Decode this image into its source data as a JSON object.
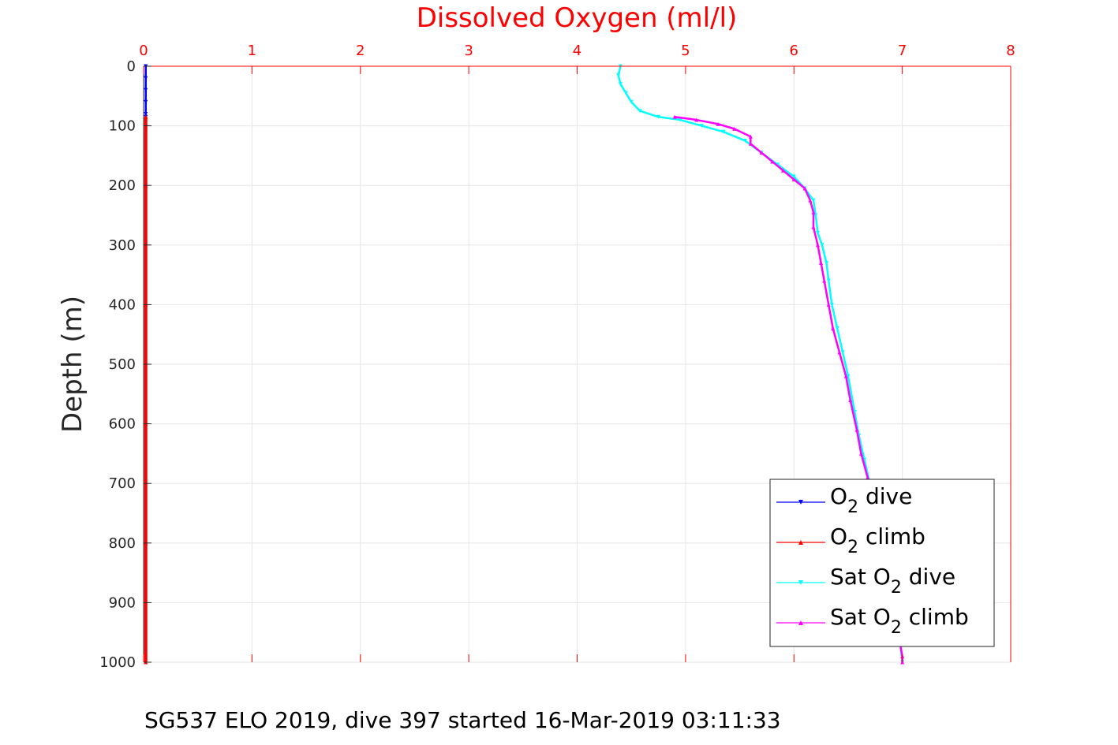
{
  "chart_data": {
    "type": "line",
    "title": "Dissolved Oxygen (ml/l)",
    "xlabel": "Dissolved Oxygen (ml/l)",
    "ylabel": "Depth (m)",
    "xlim": [
      0,
      8
    ],
    "ylim": [
      0,
      1000
    ],
    "y_reversed": true,
    "x_axis_position": "top",
    "x_ticks": [
      0,
      1,
      2,
      3,
      4,
      5,
      6,
      7,
      8
    ],
    "y_ticks": [
      0,
      100,
      200,
      300,
      400,
      500,
      600,
      700,
      800,
      900,
      1000
    ],
    "grid": true,
    "legend_position": "bottom-right",
    "colors": {
      "axis_x": "#ff0000",
      "axis_y": "#262626",
      "grid": "#e6e6e6"
    },
    "series": [
      {
        "name": "O2 dive",
        "legend_label": {
          "main": "O",
          "sub": "2",
          "rest": " dive"
        },
        "color": "#0000ff",
        "marker": "triangle-down",
        "points": [
          [
            0.02,
            0
          ],
          [
            0.02,
            20
          ],
          [
            0.02,
            40
          ],
          [
            0.02,
            60
          ],
          [
            0.02,
            80
          ],
          [
            0.02,
            85
          ]
        ]
      },
      {
        "name": "O2 climb",
        "legend_label": {
          "main": "O",
          "sub": "2",
          "rest": " climb"
        },
        "color": "#ff0000",
        "marker": "triangle-up",
        "points": [
          [
            0.02,
            85
          ],
          [
            0.02,
            200
          ],
          [
            0.02,
            400
          ],
          [
            0.02,
            600
          ],
          [
            0.02,
            800
          ],
          [
            0.02,
            1000
          ]
        ]
      },
      {
        "name": "Sat O2 dive",
        "legend_label": {
          "pre": "Sat O",
          "sub": "2",
          "rest": " dive"
        },
        "color": "#00ffff",
        "marker": "triangle-down",
        "points": [
          [
            4.4,
            0
          ],
          [
            4.38,
            15
          ],
          [
            4.4,
            30
          ],
          [
            4.45,
            45
          ],
          [
            4.5,
            60
          ],
          [
            4.58,
            75
          ],
          [
            4.75,
            85
          ],
          [
            4.95,
            90
          ],
          [
            5.15,
            100
          ],
          [
            5.35,
            110
          ],
          [
            5.55,
            125
          ],
          [
            5.7,
            145
          ],
          [
            5.85,
            165
          ],
          [
            6.0,
            185
          ],
          [
            6.1,
            205
          ],
          [
            6.18,
            225
          ],
          [
            6.2,
            250
          ],
          [
            6.22,
            280
          ],
          [
            6.26,
            300
          ],
          [
            6.3,
            330
          ],
          [
            6.32,
            360
          ],
          [
            6.35,
            400
          ],
          [
            6.4,
            440
          ],
          [
            6.45,
            480
          ],
          [
            6.5,
            520
          ],
          [
            6.56,
            580
          ],
          [
            6.6,
            620
          ],
          [
            6.65,
            660
          ],
          [
            6.7,
            700
          ],
          [
            6.75,
            750
          ],
          [
            6.8,
            800
          ],
          [
            6.86,
            850
          ],
          [
            6.92,
            900
          ],
          [
            6.97,
            950
          ],
          [
            7.0,
            1000
          ]
        ]
      },
      {
        "name": "Sat O2 climb",
        "legend_label": {
          "pre": "Sat O",
          "sub": "2",
          "rest": " climb"
        },
        "color": "#ff00ff",
        "marker": "triangle-up",
        "points": [
          [
            4.9,
            85
          ],
          [
            5.1,
            90
          ],
          [
            5.3,
            97
          ],
          [
            5.45,
            105
          ],
          [
            5.6,
            118
          ],
          [
            5.6,
            130
          ],
          [
            5.7,
            145
          ],
          [
            5.8,
            160
          ],
          [
            5.9,
            175
          ],
          [
            6.0,
            190
          ],
          [
            6.1,
            205
          ],
          [
            6.15,
            225
          ],
          [
            6.18,
            245
          ],
          [
            6.18,
            270
          ],
          [
            6.22,
            300
          ],
          [
            6.25,
            330
          ],
          [
            6.28,
            360
          ],
          [
            6.32,
            400
          ],
          [
            6.36,
            440
          ],
          [
            6.42,
            480
          ],
          [
            6.48,
            520
          ],
          [
            6.52,
            560
          ],
          [
            6.58,
            610
          ],
          [
            6.62,
            650
          ],
          [
            6.68,
            690
          ],
          [
            6.73,
            740
          ],
          [
            6.78,
            790
          ],
          [
            6.85,
            840
          ],
          [
            6.9,
            890
          ],
          [
            6.95,
            940
          ],
          [
            7.0,
            990
          ],
          [
            7.0,
            1000
          ]
        ]
      }
    ]
  },
  "caption": "SG537 ELO 2019, dive 397 started 16-Mar-2019 03:11:33"
}
